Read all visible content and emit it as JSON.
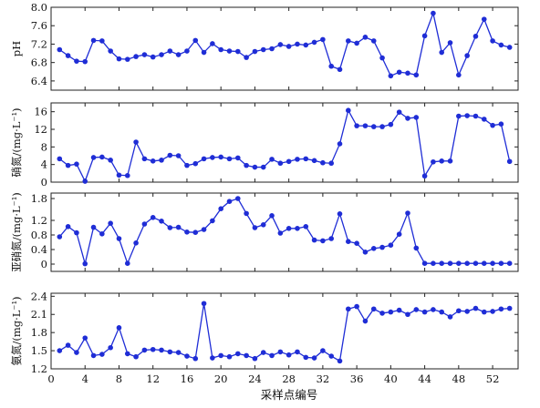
{
  "chart_data": [
    {
      "type": "line",
      "ylabel": "pH",
      "ylim": [
        6.2,
        8.0
      ],
      "yticks": [
        "8.0",
        "7.6",
        "7.2",
        "6.8",
        "6.4"
      ],
      "ytick_values": [
        8.0,
        7.6,
        7.2,
        6.8,
        6.4
      ],
      "x": [
        1,
        2,
        3,
        4,
        5,
        6,
        7,
        8,
        9,
        10,
        11,
        12,
        13,
        14,
        15,
        16,
        17,
        18,
        19,
        20,
        21,
        22,
        23,
        24,
        25,
        26,
        27,
        28,
        29,
        30,
        31,
        32,
        33,
        34,
        35,
        36,
        37,
        38,
        39,
        40,
        41,
        42,
        43,
        44,
        45,
        46,
        47,
        48,
        49,
        50,
        51,
        52,
        53,
        54
      ],
      "values": [
        7.08,
        6.95,
        6.83,
        6.82,
        7.28,
        7.27,
        7.05,
        6.88,
        6.87,
        6.93,
        6.97,
        6.92,
        6.97,
        7.05,
        6.97,
        7.05,
        7.28,
        7.02,
        7.21,
        7.08,
        7.05,
        7.04,
        6.91,
        7.04,
        7.08,
        7.1,
        7.19,
        7.15,
        7.2,
        7.18,
        7.24,
        7.3,
        6.72,
        6.65,
        7.27,
        7.22,
        7.35,
        7.27,
        6.9,
        6.51,
        6.59,
        6.57,
        6.53,
        7.38,
        7.87,
        7.02,
        7.23,
        6.53,
        6.95,
        7.37,
        7.74,
        7.27,
        7.18,
        7.13
      ]
    },
    {
      "type": "line",
      "ylabel": "硝氮/(mg·L⁻¹)",
      "ylim": [
        0,
        18
      ],
      "yticks": [
        "16",
        "12",
        "8",
        "4",
        "0"
      ],
      "ytick_values": [
        16,
        12,
        8,
        4,
        0
      ],
      "x": [
        1,
        2,
        3,
        4,
        5,
        6,
        7,
        8,
        9,
        10,
        11,
        12,
        13,
        14,
        15,
        16,
        17,
        18,
        19,
        20,
        21,
        22,
        23,
        24,
        25,
        26,
        27,
        28,
        29,
        30,
        31,
        32,
        33,
        34,
        35,
        36,
        37,
        38,
        39,
        40,
        41,
        42,
        43,
        44,
        45,
        46,
        47,
        48,
        49,
        50,
        51,
        52,
        53,
        54
      ],
      "values": [
        5.3,
        3.8,
        4.1,
        0.2,
        5.6,
        5.7,
        5.0,
        1.6,
        1.5,
        9.1,
        5.3,
        4.8,
        5.0,
        6.1,
        6.0,
        3.8,
        4.2,
        5.3,
        5.6,
        5.7,
        5.3,
        5.5,
        3.8,
        3.4,
        3.4,
        5.2,
        4.3,
        4.7,
        5.2,
        5.3,
        4.9,
        4.4,
        4.3,
        8.7,
        16.3,
        12.8,
        12.8,
        12.6,
        12.6,
        13.1,
        15.9,
        14.5,
        14.7,
        1.4,
        4.6,
        4.8,
        4.8,
        15.0,
        15.1,
        15.0,
        14.3,
        12.9,
        13.2,
        4.7
      ]
    },
    {
      "type": "line",
      "ylabel": "亚硝氮/(mg·L⁻¹)",
      "ylim": [
        -0.2,
        1.95
      ],
      "yticks": [
        "1.8",
        "1.2",
        "0.8",
        "0.4",
        "0"
      ],
      "ytick_values": [
        1.8,
        1.2,
        0.8,
        0.4,
        0
      ],
      "x": [
        1,
        2,
        3,
        4,
        5,
        6,
        7,
        8,
        9,
        10,
        11,
        12,
        13,
        14,
        15,
        16,
        17,
        18,
        19,
        20,
        21,
        22,
        23,
        24,
        25,
        26,
        27,
        28,
        29,
        30,
        31,
        32,
        33,
        34,
        35,
        36,
        37,
        38,
        39,
        40,
        41,
        42,
        43,
        44,
        45,
        46,
        47,
        48,
        49,
        50,
        51,
        52,
        53,
        54
      ],
      "values": [
        0.75,
        1.03,
        0.86,
        0.01,
        1.01,
        0.83,
        1.12,
        0.7,
        0.02,
        0.58,
        1.1,
        1.28,
        1.18,
        1.0,
        1.01,
        0.88,
        0.87,
        0.95,
        1.19,
        1.52,
        1.72,
        1.8,
        1.39,
        1.0,
        1.08,
        1.33,
        0.85,
        0.98,
        0.98,
        1.03,
        0.66,
        0.64,
        0.7,
        1.38,
        0.62,
        0.57,
        0.33,
        0.43,
        0.46,
        0.52,
        0.82,
        1.4,
        0.44,
        0.02,
        0.02,
        0.02,
        0.02,
        0.02,
        0.02,
        0.02,
        0.02,
        0.02,
        0.02,
        0.02
      ]
    },
    {
      "type": "line",
      "ylabel": "氨氮/(mg·L⁻¹)",
      "ylim": [
        1.2,
        2.45
      ],
      "yticks": [
        "2.4",
        "2.1",
        "1.8",
        "1.5",
        "1.2"
      ],
      "ytick_values": [
        2.4,
        2.1,
        1.8,
        1.5,
        1.2
      ],
      "x": [
        1,
        2,
        3,
        4,
        5,
        6,
        7,
        8,
        9,
        10,
        11,
        12,
        13,
        14,
        15,
        16,
        17,
        18,
        19,
        20,
        21,
        22,
        23,
        24,
        25,
        26,
        27,
        28,
        29,
        30,
        31,
        32,
        33,
        34,
        35,
        36,
        37,
        38,
        39,
        40,
        41,
        42,
        43,
        44,
        45,
        46,
        47,
        48,
        49,
        50,
        51,
        52,
        53,
        54
      ],
      "values": [
        1.5,
        1.59,
        1.47,
        1.71,
        1.42,
        1.44,
        1.55,
        1.88,
        1.45,
        1.4,
        1.51,
        1.52,
        1.51,
        1.48,
        1.47,
        1.41,
        1.37,
        2.28,
        1.38,
        1.42,
        1.4,
        1.45,
        1.42,
        1.37,
        1.47,
        1.42,
        1.48,
        1.43,
        1.48,
        1.39,
        1.38,
        1.5,
        1.41,
        1.33,
        2.19,
        2.23,
        1.99,
        2.19,
        2.12,
        2.14,
        2.17,
        2.1,
        2.18,
        2.14,
        2.18,
        2.14,
        2.06,
        2.16,
        2.15,
        2.2,
        2.14,
        2.15,
        2.19,
        2.2
      ]
    }
  ],
  "shared_x": {
    "label": "采样点编号",
    "xlim": [
      0,
      55
    ],
    "ticks": [
      0,
      4,
      8,
      12,
      16,
      20,
      24,
      28,
      32,
      36,
      40,
      44,
      48,
      52
    ]
  },
  "colors": {
    "series": "#1f2dd6",
    "axis": "#222222"
  }
}
